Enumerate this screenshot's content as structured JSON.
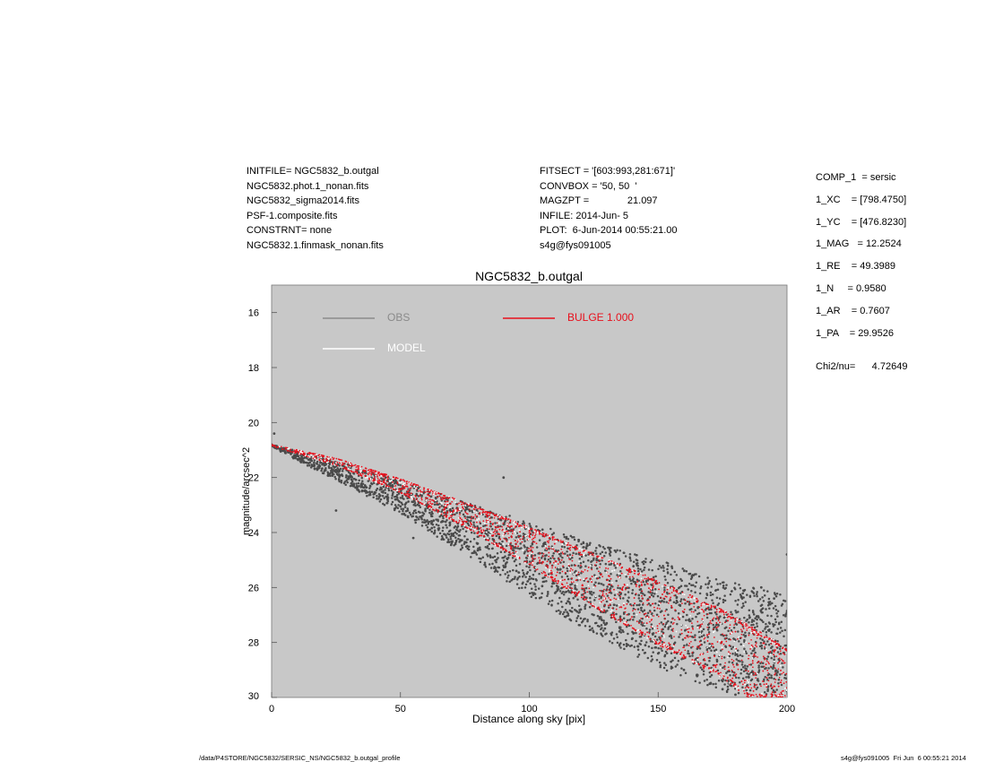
{
  "header": {
    "left": [
      "INITFILE= NGC5832_b.outgal",
      "NGC5832.phot.1_nonan.fits",
      "NGC5832_sigma2014.fits",
      "PSF-1.composite.fits",
      "CONSTRNT= none",
      "NGC5832.1.finmask_nonan.fits"
    ],
    "middle": [
      "FITSECT = '[603:993,281:671]'",
      "CONVBOX = '50, 50  '",
      "MAGZPT =              21.097",
      "INFILE: 2014-Jun- 5",
      "PLOT:  6-Jun-2014 00:55:21.00",
      "s4g@fys091005"
    ]
  },
  "components": [
    "COMP_1  = sersic",
    "1_XC    = [798.4750]",
    "1_YC    = [476.8230]",
    "1_MAG   = 12.2524",
    "1_RE    = 49.3989",
    "1_N     = 0.9580",
    "1_AR    = 0.7607",
    "1_PA    = 29.9526"
  ],
  "chi2": "Chi2/nu=      4.72649",
  "footer": {
    "left": "/data/P4STORE/NGC5832/SERSIC_NS/NGC5832_b.outgal_profile",
    "right": "s4g@fys091005  Fri Jun  6 00:55:21 2014"
  },
  "colors": {
    "plot_bg": "#c8c8c8",
    "obs": "#4a4a4a",
    "bulge": "#e8101c",
    "model": "#ffffff",
    "obs_legend": "#8a8a8a"
  },
  "chart_data": {
    "type": "scatter",
    "title": "NGC5832_b.outgal",
    "xlabel": "Distance along sky [pix]",
    "ylabel": "magnitude/arcsec^2",
    "xlim": [
      0,
      200
    ],
    "ylim": [
      30,
      15
    ],
    "y_inverted": true,
    "xticks": [
      "0",
      "50",
      "100",
      "150",
      "200"
    ],
    "yticks": [
      "16",
      "18",
      "20",
      "22",
      "24",
      "26",
      "28",
      "30"
    ],
    "grid": false,
    "legend": [
      {
        "name": "OBS",
        "color": "#8a8a8a",
        "position": "top-left"
      },
      {
        "name": "MODEL",
        "color": "#ffffff",
        "position": "top-left"
      },
      {
        "name": "BULGE  1.000",
        "color": "#e8101c",
        "position": "top-center"
      }
    ],
    "series": [
      {
        "name": "OBS",
        "points": [
          [
            0,
            20.8
          ],
          [
            1,
            20.4
          ],
          [
            2,
            20.9
          ],
          [
            5,
            21.0
          ],
          [
            10,
            21.15
          ],
          [
            15,
            21.3
          ],
          [
            20,
            21.5
          ],
          [
            25,
            21.8
          ],
          [
            25,
            23.2
          ],
          [
            30,
            22.0
          ],
          [
            35,
            22.3
          ],
          [
            40,
            22.55
          ],
          [
            45,
            22.8
          ],
          [
            50,
            23.05
          ],
          [
            55,
            23.3
          ],
          [
            55,
            24.2
          ],
          [
            60,
            23.6
          ],
          [
            65,
            23.85
          ],
          [
            70,
            24.1
          ],
          [
            75,
            24.35
          ],
          [
            80,
            24.65
          ],
          [
            85,
            24.9
          ],
          [
            90,
            22.0
          ],
          [
            95,
            25.4
          ],
          [
            100,
            25.7
          ],
          [
            105,
            25.95
          ],
          [
            110,
            26.2
          ],
          [
            115,
            26.5
          ],
          [
            120,
            26.8
          ],
          [
            125,
            27.0
          ],
          [
            130,
            27.3
          ],
          [
            135,
            27.6
          ],
          [
            140,
            27.85
          ],
          [
            145,
            28.1
          ],
          [
            150,
            28.4
          ],
          [
            155,
            28.7
          ],
          [
            160,
            29.0
          ],
          [
            165,
            29.2
          ],
          [
            170,
            29.5
          ],
          [
            175,
            29.7
          ],
          [
            180,
            29.9
          ],
          [
            190,
            26.0
          ],
          [
            195,
            26.4
          ],
          [
            200,
            24.8
          ]
        ],
        "band_lower": [
          [
            0,
            20.8
          ],
          [
            25,
            21.4
          ],
          [
            50,
            22.1
          ],
          [
            75,
            22.9
          ],
          [
            100,
            23.6
          ],
          [
            125,
            24.4
          ],
          [
            150,
            25.0
          ],
          [
            175,
            25.7
          ],
          [
            200,
            26.3
          ]
        ],
        "band_upper": [
          [
            0,
            20.9
          ],
          [
            25,
            22.1
          ],
          [
            50,
            23.3
          ],
          [
            75,
            24.8
          ],
          [
            100,
            26.3
          ],
          [
            125,
            27.7
          ],
          [
            150,
            28.9
          ],
          [
            175,
            29.8
          ],
          [
            200,
            30.0
          ]
        ]
      },
      {
        "name": "BULGE  1.000",
        "band_lower": [
          [
            0,
            20.8
          ],
          [
            25,
            21.3
          ],
          [
            50,
            22.05
          ],
          [
            75,
            22.9
          ],
          [
            100,
            23.8
          ],
          [
            125,
            24.75
          ],
          [
            150,
            25.75
          ],
          [
            175,
            26.8
          ],
          [
            200,
            28.2
          ]
        ],
        "band_upper": [
          [
            0,
            20.85
          ],
          [
            25,
            21.55
          ],
          [
            50,
            22.55
          ],
          [
            75,
            23.8
          ],
          [
            100,
            25.2
          ],
          [
            125,
            26.7
          ],
          [
            150,
            28.1
          ],
          [
            175,
            29.3
          ],
          [
            185,
            30.0
          ]
        ]
      }
    ]
  }
}
